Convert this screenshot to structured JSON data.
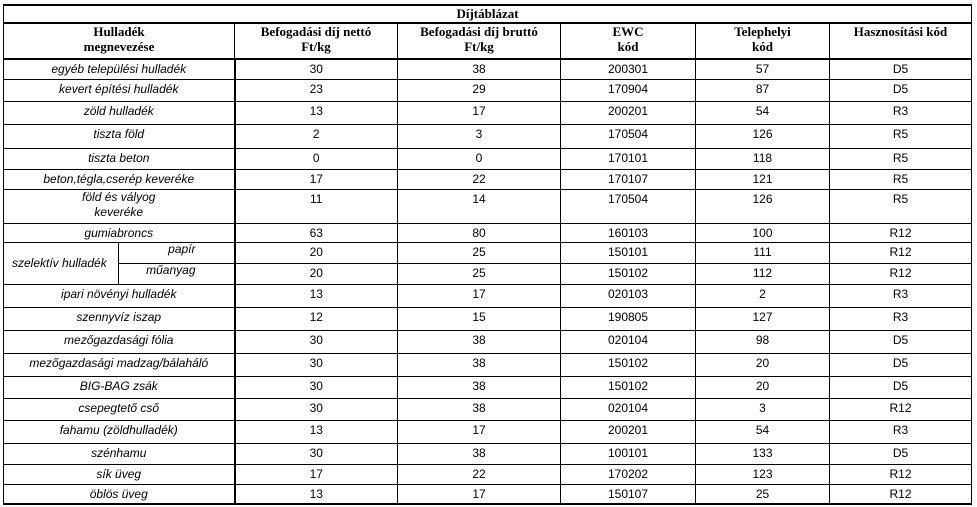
{
  "title": "Díjtáblázat",
  "headers": [
    [
      "Hulladék",
      "megnevezése"
    ],
    [
      "Befogadási díj nettó",
      "Ft/kg"
    ],
    [
      "Befogadási díj bruttó",
      "Ft/kg"
    ],
    [
      "EWC",
      "kód"
    ],
    [
      "Telephelyi",
      "kód"
    ],
    [
      "Hasznosítási kód"
    ]
  ],
  "rows": [
    {
      "name": "egyéb települési hulladék",
      "netto": "30",
      "brutto": "38",
      "ewc": "200301",
      "telephely": "57",
      "hasznositas": "D5"
    },
    {
      "name": "kevert építési hulladék",
      "netto": "23",
      "brutto": "29",
      "ewc": "170904",
      "telephely": "87",
      "hasznositas": "D5"
    },
    {
      "name": "zöld hulladék",
      "netto": "13",
      "brutto": "17",
      "ewc": "200201",
      "telephely": "54",
      "hasznositas": "R3"
    },
    {
      "name": "tiszta föld",
      "netto": "2",
      "brutto": "3",
      "ewc": "170504",
      "telephely": "126",
      "hasznositas": "R5"
    },
    {
      "name": "tiszta beton",
      "netto": "0",
      "brutto": "0",
      "ewc": "170101",
      "telephely": "118",
      "hasznositas": "R5"
    },
    {
      "name": "beton,tégla,cserép keveréke",
      "netto": "17",
      "brutto": "22",
      "ewc": "170107",
      "telephely": "121",
      "hasznositas": "R5"
    },
    {
      "name_line1": "föld és vályog",
      "name_line2": "keveréke",
      "netto": "11",
      "brutto": "14",
      "ewc": "170504",
      "telephely": "126",
      "hasznositas": "R5"
    },
    {
      "name": "gumiabroncs",
      "netto": "63",
      "brutto": "80",
      "ewc": "160103",
      "telephely": "100",
      "hasznositas": "R12"
    },
    {
      "group": "szelektív hulladék",
      "name": "papír",
      "netto": "20",
      "brutto": "25",
      "ewc": "150101",
      "telephely": "111",
      "hasznositas": "R12"
    },
    {
      "name": "műanyag",
      "netto": "20",
      "brutto": "25",
      "ewc": "150102",
      "telephely": "112",
      "hasznositas": "R12"
    },
    {
      "name": "ipari növényi hulladék",
      "netto": "13",
      "brutto": "17",
      "ewc": "020103",
      "telephely": "2",
      "hasznositas": "R3"
    },
    {
      "name": "szennyvíz iszap",
      "netto": "12",
      "brutto": "15",
      "ewc": "190805",
      "telephely": "127",
      "hasznositas": "R3"
    },
    {
      "name": "mezőgazdasági fólia",
      "netto": "30",
      "brutto": "38",
      "ewc": "020104",
      "telephely": "98",
      "hasznositas": "D5"
    },
    {
      "name": "mezőgazdasági madzag/bálaháló",
      "netto": "30",
      "brutto": "38",
      "ewc": "150102",
      "telephely": "20",
      "hasznositas": "D5"
    },
    {
      "name": "BIG-BAG zsák",
      "netto": "30",
      "brutto": "38",
      "ewc": "150102",
      "telephely": "20",
      "hasznositas": "D5"
    },
    {
      "name": "csepegtető cső",
      "netto": "30",
      "brutto": "38",
      "ewc": "020104",
      "telephely": "3",
      "hasznositas": "R12"
    },
    {
      "name": "fahamu (zöldhulladék)",
      "netto": "13",
      "brutto": "17",
      "ewc": "200201",
      "telephely": "54",
      "hasznositas": "R3"
    },
    {
      "name": "szénhamu",
      "netto": "30",
      "brutto": "38",
      "ewc": "100101",
      "telephely": "133",
      "hasznositas": "D5"
    },
    {
      "name": "sík üveg",
      "netto": "17",
      "brutto": "22",
      "ewc": "170202",
      "telephely": "123",
      "hasznositas": "R12"
    },
    {
      "name": "öblös üveg",
      "netto": "13",
      "brutto": "17",
      "ewc": "150107",
      "telephely": "25",
      "hasznositas": "R12"
    }
  ]
}
